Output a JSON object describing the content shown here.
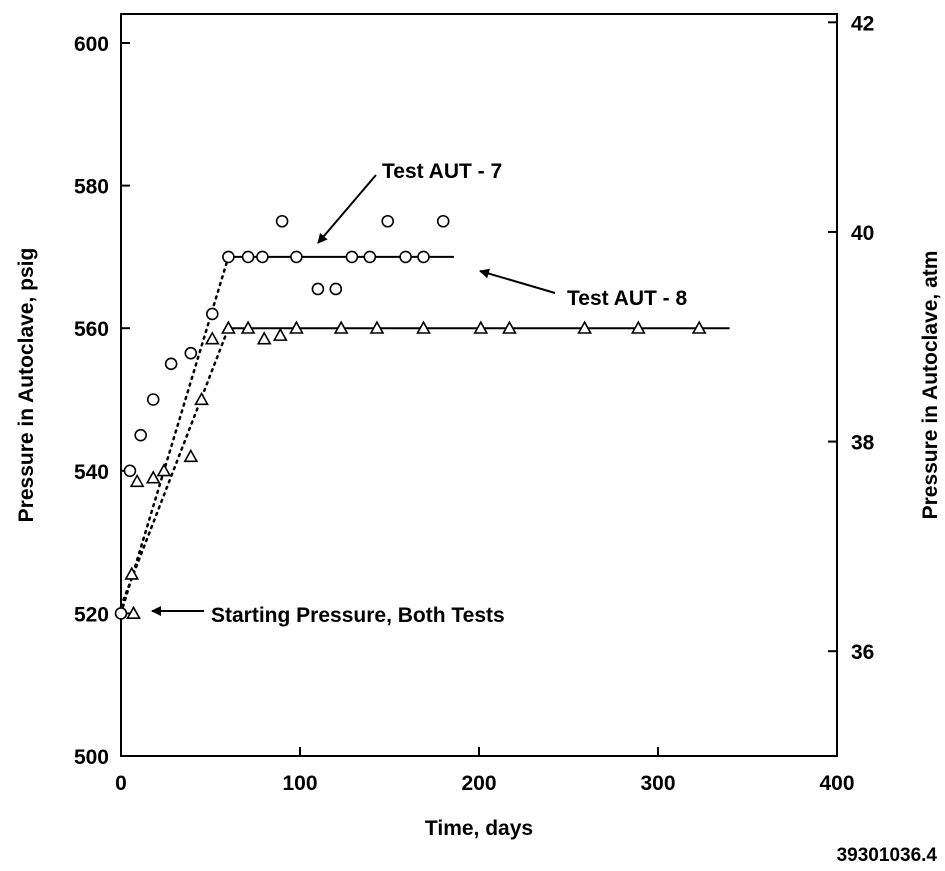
{
  "chart_data": {
    "type": "scatter",
    "title": "",
    "xlabel": "Time, days",
    "ylabel": "Pressure in Autoclave, psig",
    "y2label": "Pressure in Autoclave, atm",
    "xlim": [
      0,
      400
    ],
    "ylim": [
      500,
      605
    ],
    "y2lim": [
      35,
      42
    ],
    "x_ticks": [
      0,
      100,
      200,
      300,
      400
    ],
    "y_ticks": [
      500,
      520,
      540,
      560,
      580,
      600
    ],
    "y2_ticks": [
      36,
      38,
      40,
      42
    ],
    "grid": false,
    "legend": "none",
    "series": [
      {
        "name": "Test AUT - 7",
        "marker": "circle",
        "points": [
          [
            0,
            520
          ],
          [
            5,
            540
          ],
          [
            11,
            545
          ],
          [
            18,
            550
          ],
          [
            28,
            555
          ],
          [
            39,
            556.5
          ],
          [
            51,
            562
          ],
          [
            60,
            570
          ],
          [
            71,
            570
          ],
          [
            79,
            570
          ],
          [
            90,
            575
          ],
          [
            98,
            570
          ],
          [
            110,
            565.5
          ],
          [
            120,
            565.5
          ],
          [
            129,
            570
          ],
          [
            139,
            570
          ],
          [
            149,
            575
          ],
          [
            159,
            570
          ],
          [
            169,
            570
          ],
          [
            180,
            575
          ]
        ],
        "trend_rise": [
          [
            0,
            520
          ],
          [
            60,
            570
          ]
        ],
        "trend_plateau": [
          [
            60,
            570
          ],
          [
            186,
            570
          ]
        ]
      },
      {
        "name": "Test AUT - 8",
        "marker": "triangle",
        "points": [
          [
            7,
            520
          ],
          [
            6,
            525.5
          ],
          [
            9,
            538.5
          ],
          [
            18,
            539
          ],
          [
            24,
            540
          ],
          [
            39,
            542
          ],
          [
            45,
            550
          ],
          [
            51,
            558.5
          ],
          [
            60,
            560
          ],
          [
            71,
            560
          ],
          [
            80,
            558.5
          ],
          [
            89,
            559
          ],
          [
            98,
            560
          ],
          [
            123,
            560
          ],
          [
            143,
            560
          ],
          [
            169,
            560
          ],
          [
            201,
            560
          ],
          [
            217,
            560
          ],
          [
            259,
            560
          ],
          [
            289,
            560
          ],
          [
            323,
            560
          ]
        ],
        "trend_rise": [
          [
            0,
            521
          ],
          [
            60,
            560
          ]
        ],
        "trend_plateau": [
          [
            60,
            560
          ],
          [
            340,
            560
          ]
        ]
      }
    ],
    "annotations": [
      {
        "text": "Test AUT - 7",
        "points_to": [
          110,
          570
        ]
      },
      {
        "text": "Test AUT - 8",
        "points_to": [
          199,
          560
        ]
      },
      {
        "text": "Starting Pressure, Both Tests",
        "points_to": [
          12,
          520
        ]
      }
    ]
  },
  "figure_id": "39301036.4"
}
